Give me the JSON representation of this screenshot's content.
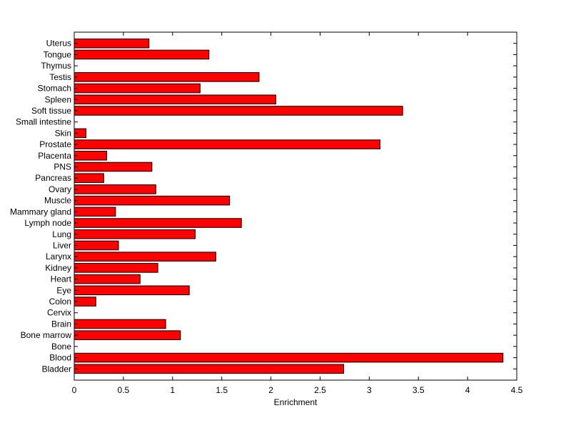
{
  "chart_data": {
    "type": "bar",
    "orientation": "horizontal",
    "categories": [
      "Bladder",
      "Blood",
      "Bone",
      "Bone marrow",
      "Brain",
      "Cervix",
      "Colon",
      "Eye",
      "Heart",
      "Kidney",
      "Larynx",
      "Liver",
      "Lung",
      "Lymph node",
      "Mammary gland",
      "Muscle",
      "Ovary",
      "Pancreas",
      "PNS",
      "Placenta",
      "Prostate",
      "Skin",
      "Small intestine",
      "Soft tissue",
      "Spleen",
      "Stomach",
      "Testis",
      "Thymus",
      "Tongue",
      "Uterus"
    ],
    "values": [
      2.74,
      4.36,
      0,
      1.08,
      0.93,
      0,
      0.22,
      1.17,
      0.67,
      0.85,
      1.44,
      0.45,
      1.23,
      1.7,
      0.42,
      1.58,
      0.83,
      0.3,
      0.79,
      0.33,
      3.11,
      0.12,
      0,
      3.34,
      2.05,
      1.28,
      1.88,
      0,
      1.37,
      0.76
    ],
    "xlabel": "Enrichment",
    "ylabel": "",
    "xlim": [
      0,
      4.5
    ],
    "xticks": [
      "0",
      "0.5",
      "1",
      "1.5",
      "2",
      "2.5",
      "3",
      "3.5",
      "4",
      "4.5"
    ],
    "bar_color": "#ff0000",
    "grid": false,
    "legend": "none"
  }
}
